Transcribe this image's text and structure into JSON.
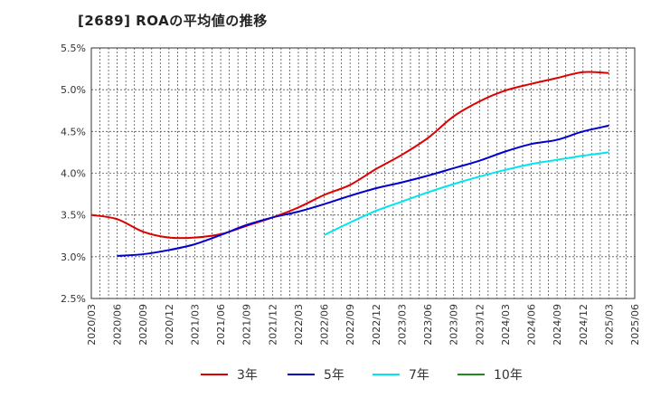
{
  "title": "[2689]  ROAの平均値の推移",
  "chart_data": {
    "type": "line",
    "title": "[2689]  ROAの平均値の推移",
    "x_ticks": [
      "2020/03",
      "2020/06",
      "2020/09",
      "2020/12",
      "2021/03",
      "2021/06",
      "2021/09",
      "2021/12",
      "2022/03",
      "2022/06",
      "2022/09",
      "2022/12",
      "2023/03",
      "2023/06",
      "2023/09",
      "2023/12",
      "2024/03",
      "2024/06",
      "2024/09",
      "2024/12",
      "2025/03",
      "2025/06"
    ],
    "y_ticks": [
      "2.5%",
      "3.0%",
      "3.5%",
      "4.0%",
      "4.5%",
      "5.0%",
      "5.5%"
    ],
    "ylim": [
      2.5,
      5.5
    ],
    "grid": true,
    "legend_position": "bottom",
    "series": [
      {
        "name": "3年",
        "color": "#dd0000",
        "x": [
          "2020/03",
          "2020/06",
          "2020/09",
          "2020/12",
          "2021/03",
          "2021/06",
          "2021/09",
          "2021/12",
          "2022/03",
          "2022/06",
          "2022/09",
          "2022/12",
          "2023/03",
          "2023/06",
          "2023/09",
          "2023/12",
          "2024/03",
          "2024/06",
          "2024/09",
          "2024/12",
          "2025/03"
        ],
        "values": [
          3.5,
          3.45,
          3.3,
          3.23,
          3.23,
          3.27,
          3.37,
          3.47,
          3.59,
          3.74,
          3.86,
          4.05,
          4.22,
          4.42,
          4.68,
          4.86,
          4.99,
          5.07,
          5.14,
          5.21,
          5.2
        ]
      },
      {
        "name": "5年",
        "color": "#0000cc",
        "x": [
          "2020/06",
          "2020/09",
          "2020/12",
          "2021/03",
          "2021/06",
          "2021/09",
          "2021/12",
          "2022/03",
          "2022/06",
          "2022/09",
          "2022/12",
          "2023/03",
          "2023/06",
          "2023/09",
          "2023/12",
          "2024/03",
          "2024/06",
          "2024/09",
          "2024/12",
          "2025/03"
        ],
        "values": [
          3.01,
          3.03,
          3.08,
          3.15,
          3.26,
          3.38,
          3.47,
          3.54,
          3.63,
          3.73,
          3.82,
          3.89,
          3.97,
          4.06,
          4.15,
          4.26,
          4.35,
          4.4,
          4.5,
          4.57
        ]
      },
      {
        "name": "7年",
        "color": "#00e5ee",
        "x": [
          "2022/06",
          "2022/09",
          "2022/12",
          "2023/03",
          "2023/06",
          "2023/09",
          "2023/12",
          "2024/03",
          "2024/06",
          "2024/09",
          "2024/12",
          "2025/03"
        ],
        "values": [
          3.26,
          3.41,
          3.55,
          3.66,
          3.77,
          3.87,
          3.96,
          4.04,
          4.11,
          4.16,
          4.21,
          4.25
        ]
      },
      {
        "name": "10年",
        "color": "#228822",
        "x": [],
        "values": []
      }
    ]
  }
}
